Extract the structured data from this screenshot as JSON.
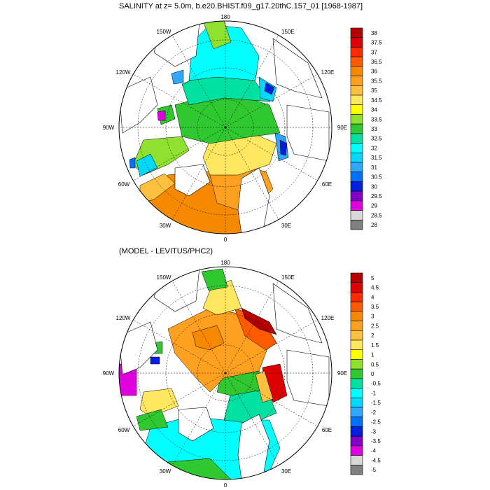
{
  "titles": {
    "top": "SALINITY at z=   5.0m, b.e20.BHIST.f09_g17.20thC.157_01 [1968-1987]",
    "bottom": "(MODEL - LEVITUS/PHC2)"
  },
  "map_labels": {
    "lon_180": "180",
    "lon_150w": "150W",
    "lon_150e": "150E",
    "lon_120w": "120W",
    "lon_120e": "120E",
    "lon_90w": "90W",
    "lon_90e": "90E",
    "lon_60w": "60W",
    "lon_60e": "60E",
    "lon_30w": "30W",
    "lon_30e": "30E",
    "lon_0": "0"
  },
  "chart_data": [
    {
      "type": "heatmap",
      "projection": "north polar stereographic",
      "title": "SALINITY at z=   5.0m, b.e20.BHIST.f09_g17.20thC.157_01 [1968-1987]",
      "colorbar_levels": [
        "38",
        "37.5",
        "37",
        "36.5",
        "36",
        "35.5",
        "35",
        "34.5",
        "34",
        "33.5",
        "33",
        "32.5",
        "32",
        "31.5",
        "31",
        "30.5",
        "30",
        "29.5",
        "29",
        "28.5",
        "28"
      ],
      "colorbar_colors": [
        "#b40000",
        "#dc0000",
        "#ff2a00",
        "#ff5a00",
        "#f58a00",
        "#ffa020",
        "#ffc040",
        "#ffe860",
        "#ffff00",
        "#90e030",
        "#30c830",
        "#00e0a0",
        "#00ffff",
        "#00d8ff",
        "#30a8ff",
        "#0070ff",
        "#0020e0",
        "#8000c8",
        "#e000e0",
        "#d8d8d8",
        "#808080"
      ],
      "value_range": [
        28,
        38
      ]
    },
    {
      "type": "heatmap",
      "projection": "north polar stereographic",
      "title": "(MODEL - LEVITUS/PHC2)",
      "colorbar_levels": [
        "5",
        "4.5",
        "4",
        "3.5",
        "3",
        "2.5",
        "2",
        "1.5",
        "1",
        "0.5",
        "0",
        "-0.5",
        "-1",
        "-1.5",
        "-2",
        "-2.5",
        "-3",
        "-3.5",
        "-4",
        "-4.5",
        "-5"
      ],
      "colorbar_colors": [
        "#b40000",
        "#dc0000",
        "#ff2a00",
        "#ff5a00",
        "#f58a00",
        "#ffa020",
        "#ffc040",
        "#ffe860",
        "#ffff00",
        "#90e030",
        "#30c830",
        "#00e0a0",
        "#00ffff",
        "#00d8ff",
        "#30a8ff",
        "#0070ff",
        "#0020e0",
        "#8000c8",
        "#e000e0",
        "#d8d8d8",
        "#808080"
      ],
      "value_range": [
        -5,
        5
      ]
    }
  ]
}
